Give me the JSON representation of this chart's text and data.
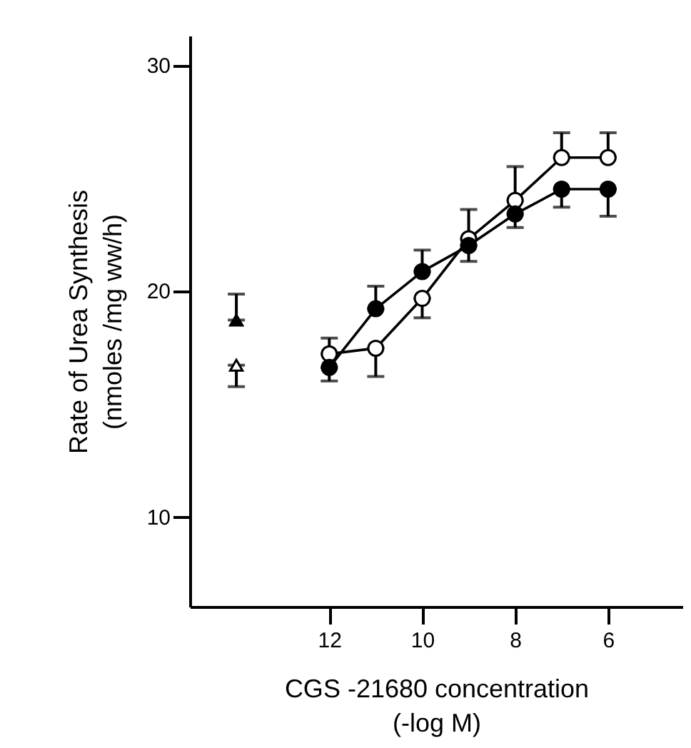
{
  "chart_data": {
    "type": "line",
    "xlabel": "CGS -21680 concentration\n(-log M)",
    "ylabel": "Rate of Urea Synthesis\n(nmoles /mg ww/h)",
    "x": [
      12,
      11,
      10,
      9,
      8,
      7,
      6
    ],
    "series": [
      {
        "color": "#000000",
        "marker": "circle",
        "values": [
          16.6,
          19.2,
          20.85,
          22.0,
          23.4,
          24.5,
          24.5
        ],
        "errors": [
          [
            16.0,
            16.6
          ],
          [
            19.2,
            20.2
          ],
          [
            20.85,
            21.8
          ],
          [
            21.3,
            22.0
          ],
          [
            22.8,
            23.4
          ],
          [
            23.7,
            24.5
          ],
          [
            23.3,
            24.5
          ]
        ]
      },
      {
        "color": "#ffffff",
        "marker": "circle",
        "values": [
          17.2,
          17.45,
          19.66,
          22.3,
          24.0,
          25.9,
          25.9
        ],
        "errors": [
          [
            17.2,
            17.9
          ],
          [
            16.2,
            17.45
          ],
          [
            18.8,
            19.66
          ],
          [
            22.3,
            23.6
          ],
          [
            24.0,
            25.5
          ],
          [
            25.9,
            27.0
          ],
          [
            25.9,
            27.0
          ]
        ]
      },
      {
        "type": "scatter",
        "x": [
          14
        ],
        "color": "#000000",
        "marker": "triangle",
        "values": [
          18.7
        ],
        "errors": [
          [
            18.7,
            19.85
          ]
        ]
      },
      {
        "type": "scatter",
        "x": [
          14
        ],
        "color": "#ffffff",
        "marker": "triangle",
        "values": [
          16.7
        ],
        "errors": [
          [
            15.75,
            16.7
          ]
        ]
      }
    ],
    "xlim": [
      15,
      4.4
    ],
    "xticks": [
      12,
      10,
      8,
      6
    ],
    "ylim": [
      6,
      31.3
    ],
    "yticks": [
      10,
      20,
      30
    ],
    "grid": false
  }
}
